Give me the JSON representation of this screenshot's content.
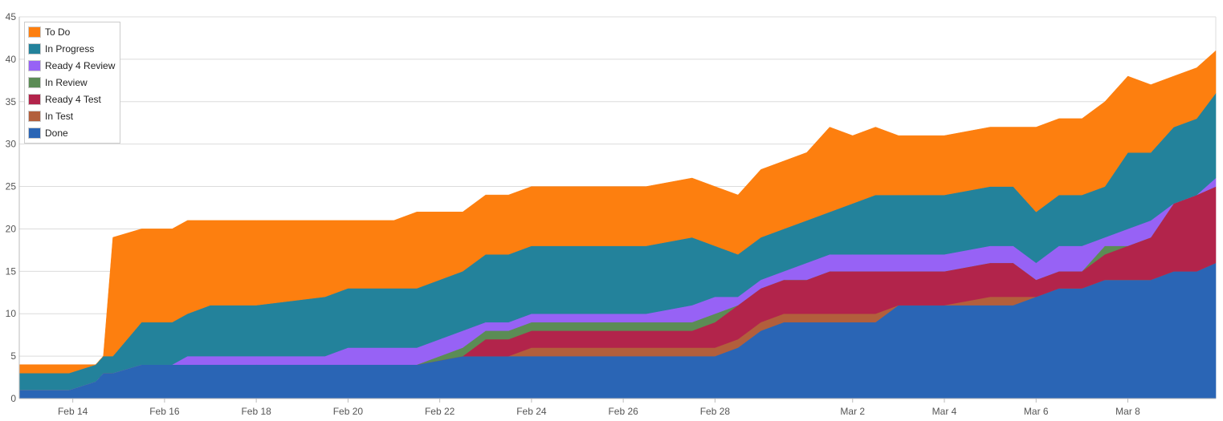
{
  "chart_data": {
    "type": "area",
    "stacked": true,
    "legend_position": "top-left",
    "grid": true,
    "ylim": [
      0,
      45
    ],
    "yticks": [
      "0",
      "5",
      "10",
      "15",
      "20",
      "25",
      "30",
      "35",
      "40",
      "45"
    ],
    "xlim": [
      "2024-02-12T20:00",
      "2024-03-09T22:00"
    ],
    "xticks": [
      {
        "date": "2024-02-14",
        "label": "Feb 14"
      },
      {
        "date": "2024-02-16",
        "label": "Feb 16"
      },
      {
        "date": "2024-02-18",
        "label": "Feb 18"
      },
      {
        "date": "2024-02-20",
        "label": "Feb 20"
      },
      {
        "date": "2024-02-22",
        "label": "Feb 22"
      },
      {
        "date": "2024-02-24",
        "label": "Feb 24"
      },
      {
        "date": "2024-02-26",
        "label": "Feb 26"
      },
      {
        "date": "2024-02-28",
        "label": "Feb 28"
      },
      {
        "date": "2024-03-02",
        "label": "Mar 2"
      },
      {
        "date": "2024-03-04",
        "label": "Mar 4"
      },
      {
        "date": "2024-03-06",
        "label": "Mar 6"
      },
      {
        "date": "2024-03-08",
        "label": "Mar 8"
      }
    ],
    "x": [
      "2024-02-12T20:00",
      "2024-02-13T09:00",
      "2024-02-13T22:00",
      "2024-02-14T12:00",
      "2024-02-14T16:00",
      "2024-02-14T21:00",
      "2024-02-15T12:00",
      "2024-02-15T15:00",
      "2024-02-16T04:00",
      "2024-02-16T12:00",
      "2024-02-17T00:00",
      "2024-02-18T00:00",
      "2024-02-19T12:00",
      "2024-02-20T00:00",
      "2024-02-21T00:00",
      "2024-02-21T12:00",
      "2024-02-22T12:00",
      "2024-02-23T00:00",
      "2024-02-23T12:00",
      "2024-02-24T00:00",
      "2024-02-25T00:00",
      "2024-02-26T12:00",
      "2024-02-27T12:00",
      "2024-02-28T00:00",
      "2024-02-28T12:00",
      "2024-02-29T00:00",
      "2024-02-29T12:00",
      "2024-03-01T00:00",
      "2024-03-01T12:00",
      "2024-03-02T00:00",
      "2024-03-02T12:00",
      "2024-03-03T00:00",
      "2024-03-04T00:00",
      "2024-03-05T00:00",
      "2024-03-05T12:00",
      "2024-03-06T00:00",
      "2024-03-06T12:00",
      "2024-03-07T00:00",
      "2024-03-07T12:00",
      "2024-03-08T00:00",
      "2024-03-08T12:00",
      "2024-03-09T00:00",
      "2024-03-09T12:00",
      "2024-03-09T22:00"
    ],
    "series": [
      {
        "name": "Done",
        "color": "#2a65b5",
        "values": [
          1,
          1,
          1,
          2,
          3,
          3,
          4,
          4,
          4,
          4,
          4,
          4,
          4,
          4,
          4,
          4,
          5,
          5,
          5,
          5,
          5,
          5,
          5,
          5,
          6,
          8,
          9,
          9,
          9,
          9,
          9,
          11,
          11,
          11,
          11,
          12,
          13,
          13,
          14,
          14,
          14,
          15,
          15,
          16
        ]
      },
      {
        "name": "In Test",
        "color": "#b25f3c",
        "values": [
          0,
          0,
          0,
          0,
          0,
          0,
          0,
          0,
          0,
          0,
          0,
          0,
          0,
          0,
          0,
          0,
          0,
          0,
          0,
          1,
          1,
          1,
          1,
          1,
          1,
          1,
          1,
          1,
          1,
          1,
          1,
          0,
          0,
          1,
          1,
          0,
          0,
          0,
          0,
          0,
          0,
          0,
          0,
          0
        ]
      },
      {
        "name": "Ready 4 Test",
        "color": "#b2244b",
        "values": [
          0,
          0,
          0,
          0,
          0,
          0,
          0,
          0,
          0,
          0,
          0,
          0,
          0,
          0,
          0,
          0,
          0,
          2,
          2,
          2,
          2,
          2,
          2,
          3,
          4,
          4,
          4,
          4,
          5,
          5,
          5,
          4,
          4,
          4,
          4,
          2,
          2,
          2,
          3,
          4,
          5,
          8,
          9,
          9
        ]
      },
      {
        "name": "In Review",
        "color": "#5b8c55",
        "values": [
          0,
          0,
          0,
          0,
          0,
          0,
          0,
          0,
          0,
          0,
          0,
          0,
          0,
          0,
          0,
          0,
          1,
          1,
          1,
          1,
          1,
          1,
          1,
          1,
          0,
          0,
          0,
          0,
          0,
          0,
          0,
          0,
          0,
          0,
          0,
          0,
          0,
          0,
          1,
          0,
          0,
          0,
          0,
          0
        ]
      },
      {
        "name": "Ready 4 Review",
        "color": "#9762f5",
        "values": [
          0,
          0,
          0,
          0,
          0,
          0,
          0,
          0,
          0,
          1,
          1,
          1,
          1,
          2,
          2,
          2,
          2,
          1,
          1,
          1,
          1,
          1,
          2,
          2,
          1,
          1,
          1,
          2,
          2,
          2,
          2,
          2,
          2,
          2,
          2,
          2,
          3,
          3,
          1,
          2,
          2,
          0,
          0,
          1
        ]
      },
      {
        "name": "In Progress",
        "color": "#23829b",
        "values": [
          2,
          2,
          2,
          2,
          2,
          2,
          5,
          5,
          5,
          5,
          6,
          6,
          7,
          7,
          7,
          7,
          7,
          8,
          8,
          8,
          8,
          8,
          8,
          6,
          5,
          5,
          5,
          5,
          5,
          6,
          7,
          7,
          7,
          7,
          7,
          6,
          6,
          6,
          6,
          9,
          8,
          9,
          9,
          10
        ]
      },
      {
        "name": "To Do",
        "color": "#fd7f0f",
        "values": [
          1,
          1,
          1,
          0,
          0,
          14,
          11,
          11,
          11,
          11,
          10,
          10,
          9,
          8,
          8,
          9,
          7,
          7,
          7,
          7,
          7,
          7,
          7,
          7,
          7,
          8,
          8,
          8,
          10,
          8,
          8,
          7,
          7,
          7,
          7,
          10,
          9,
          9,
          10,
          9,
          8,
          6,
          6,
          5
        ]
      }
    ]
  }
}
